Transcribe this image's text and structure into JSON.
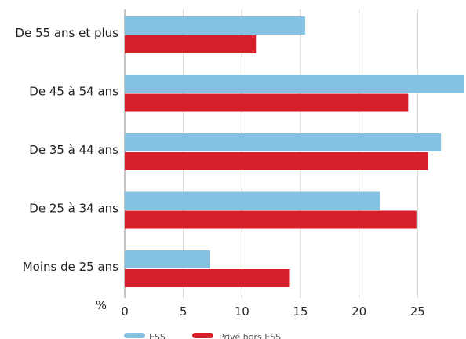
{
  "chart_data": {
    "type": "bar",
    "orientation": "horizontal",
    "categories": [
      "De 55 ans et plus",
      "De 45 à 54 ans",
      "De 35 à 44 ans",
      "De 25 à 34 ans",
      "Moins de 25 ans"
    ],
    "series": [
      {
        "name": "ESS",
        "color": "#85c1e0",
        "values": [
          15.4,
          29,
          27,
          21.8,
          7.3
        ]
      },
      {
        "name": "Privé hors ESS",
        "color": "#d51f2b",
        "values": [
          11.2,
          24.2,
          25.9,
          24.9,
          14.1
        ]
      }
    ],
    "x_unit": "%",
    "xticks": [
      0,
      5,
      10,
      15,
      20,
      25
    ],
    "xlim": [
      0,
      29
    ],
    "grid": true,
    "legend_position": "bottom"
  }
}
